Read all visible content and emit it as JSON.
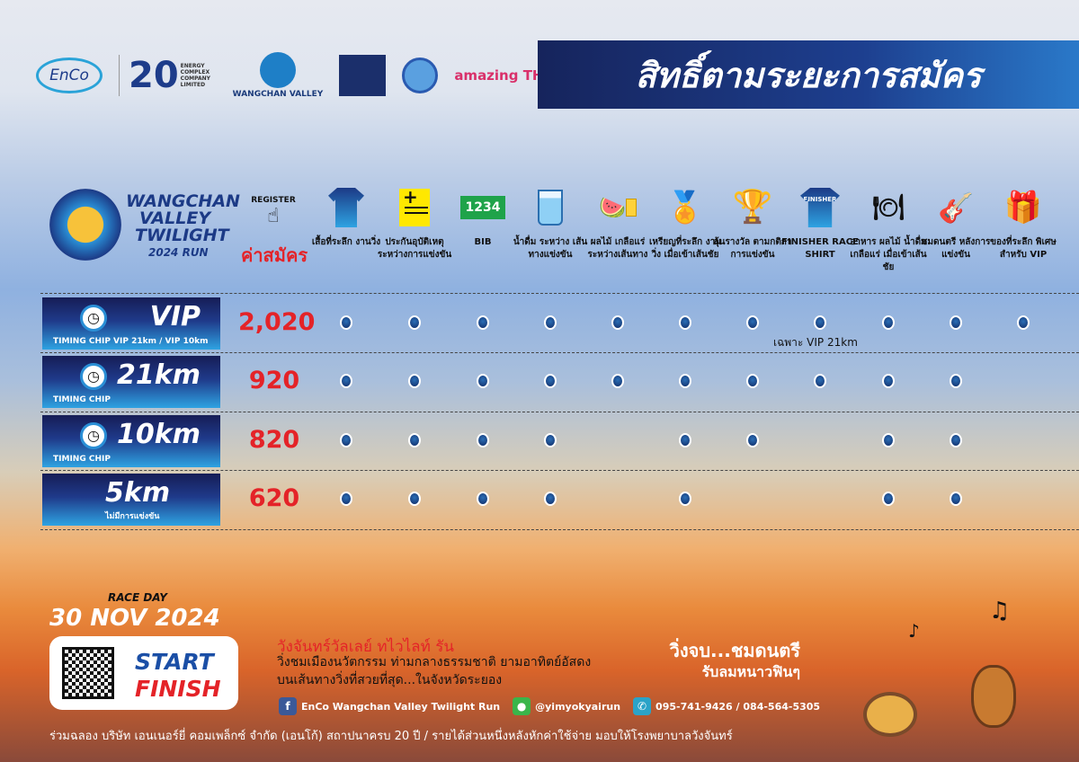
{
  "sponsors": {
    "enco": "EnCo",
    "anniversary": "20",
    "anniversary_text": "ENERGY COMPLEX COMPANY LIMITED",
    "wangchan": "WANGCHAN VALLEY",
    "tat_text": "amazing THAILAND"
  },
  "title": "สิทธิ์ตามระยะการสมัคร",
  "event_logo": {
    "line1": "WANGCHAN",
    "line2": "VALLEY",
    "line3": "TWILIGHT",
    "line4": "2024 RUN"
  },
  "header": {
    "register": "REGISTER",
    "fee": "ค่าสมัคร"
  },
  "benefits": [
    {
      "label": "เสื้อที่ระลึก งานวิ่ง",
      "icon": "tshirt-icon"
    },
    {
      "label": "ประกันอุบัติเหตุ ระหว่างการแข่งขัน",
      "icon": "insurance-icon"
    },
    {
      "label": "BIB",
      "icon": "bib-icon",
      "icon_text": "1234"
    },
    {
      "label": "น้ำดื่ม ระหว่าง เส้นทางแข่งขัน",
      "icon": "water-glass-icon"
    },
    {
      "label": "ผลไม้ เกลือแร่ ระหว่างเส้นทาง",
      "icon": "fruit-drink-icon"
    },
    {
      "label": "เหรียญที่ระลึก งานวิ่ง เมื่อเข้าเส้นชัย",
      "icon": "medal-icon"
    },
    {
      "label": "ลุ้นรางวัล ตามกติกา การแข่งขัน",
      "icon": "trophy-icon"
    },
    {
      "label": "FINISHER RACE SHIRT",
      "icon": "finisher-shirt-icon",
      "icon_text": "FINISHER"
    },
    {
      "label": "อาหาร ผลไม้ น้ำดื่ม เกลือแร่ เมื่อเข้าเส้นชัย",
      "icon": "food-icon"
    },
    {
      "label": "ชมดนตรี หลังการแข่งขัน",
      "icon": "music-icon"
    },
    {
      "label": "ของที่ระลึก พิเศษสำหรับ VIP",
      "icon": "gift-icon"
    }
  ],
  "tiers": [
    {
      "name": "VIP",
      "sub": "TIMING CHIP VIP 21km / VIP 10km",
      "price": "2,020",
      "benefits": [
        1,
        1,
        1,
        1,
        1,
        1,
        1,
        1,
        1,
        1,
        1
      ]
    },
    {
      "name": "21km",
      "sub": "TIMING CHIP",
      "price": "920",
      "benefits": [
        1,
        1,
        1,
        1,
        1,
        1,
        1,
        1,
        1,
        1,
        0
      ]
    },
    {
      "name": "10km",
      "sub": "TIMING CHIP",
      "price": "820",
      "benefits": [
        1,
        1,
        1,
        1,
        0,
        1,
        1,
        0,
        1,
        1,
        0
      ]
    },
    {
      "name": "5km",
      "sub": "ไม่มีการแข่งขัน",
      "price": "620",
      "benefits": [
        1,
        1,
        1,
        1,
        0,
        1,
        0,
        0,
        1,
        1,
        0
      ]
    }
  ],
  "vip_note": "เฉพาะ VIP 21km",
  "race_day": {
    "label": "RACE DAY",
    "date": "30 NOV 2024"
  },
  "start": "START",
  "finish": "FINISH",
  "event_name": "วังจันทร์วัลเลย์ ทไวไลท์ รัน",
  "description": [
    "วิ่งชมเมืองนวัตกรรม ท่ามกลางธรรมชาติ ยามอาทิตย์อัสดง",
    "บนเส้นทางวิ่งที่สวยที่สุด...ในจังหวัดระยอง"
  ],
  "slogan": [
    "วิ่งจบ...ชมดนตรี",
    "รับลมหนาวฟินๆ"
  ],
  "contacts": {
    "facebook": "EnCo Wangchan Valley Twilight Run",
    "line": "@yimyokyairun",
    "phone": "095-741-9426 / 084-564-5305"
  },
  "footer": "ร่วมฉลอง บริษัท เอนเนอร์ยี่ คอมเพล็กซ์ จำกัด (เอนโก้) สถาปนาครบ 20 ปี  / รายได้ส่วนหนึ่งหลังหักค่าใช้จ่าย มอบให้โรงพยาบาลวังจันทร์",
  "colors": {
    "price": "#e42328",
    "title_bar": "#1d3f8f",
    "dot": "#1e4f95"
  }
}
